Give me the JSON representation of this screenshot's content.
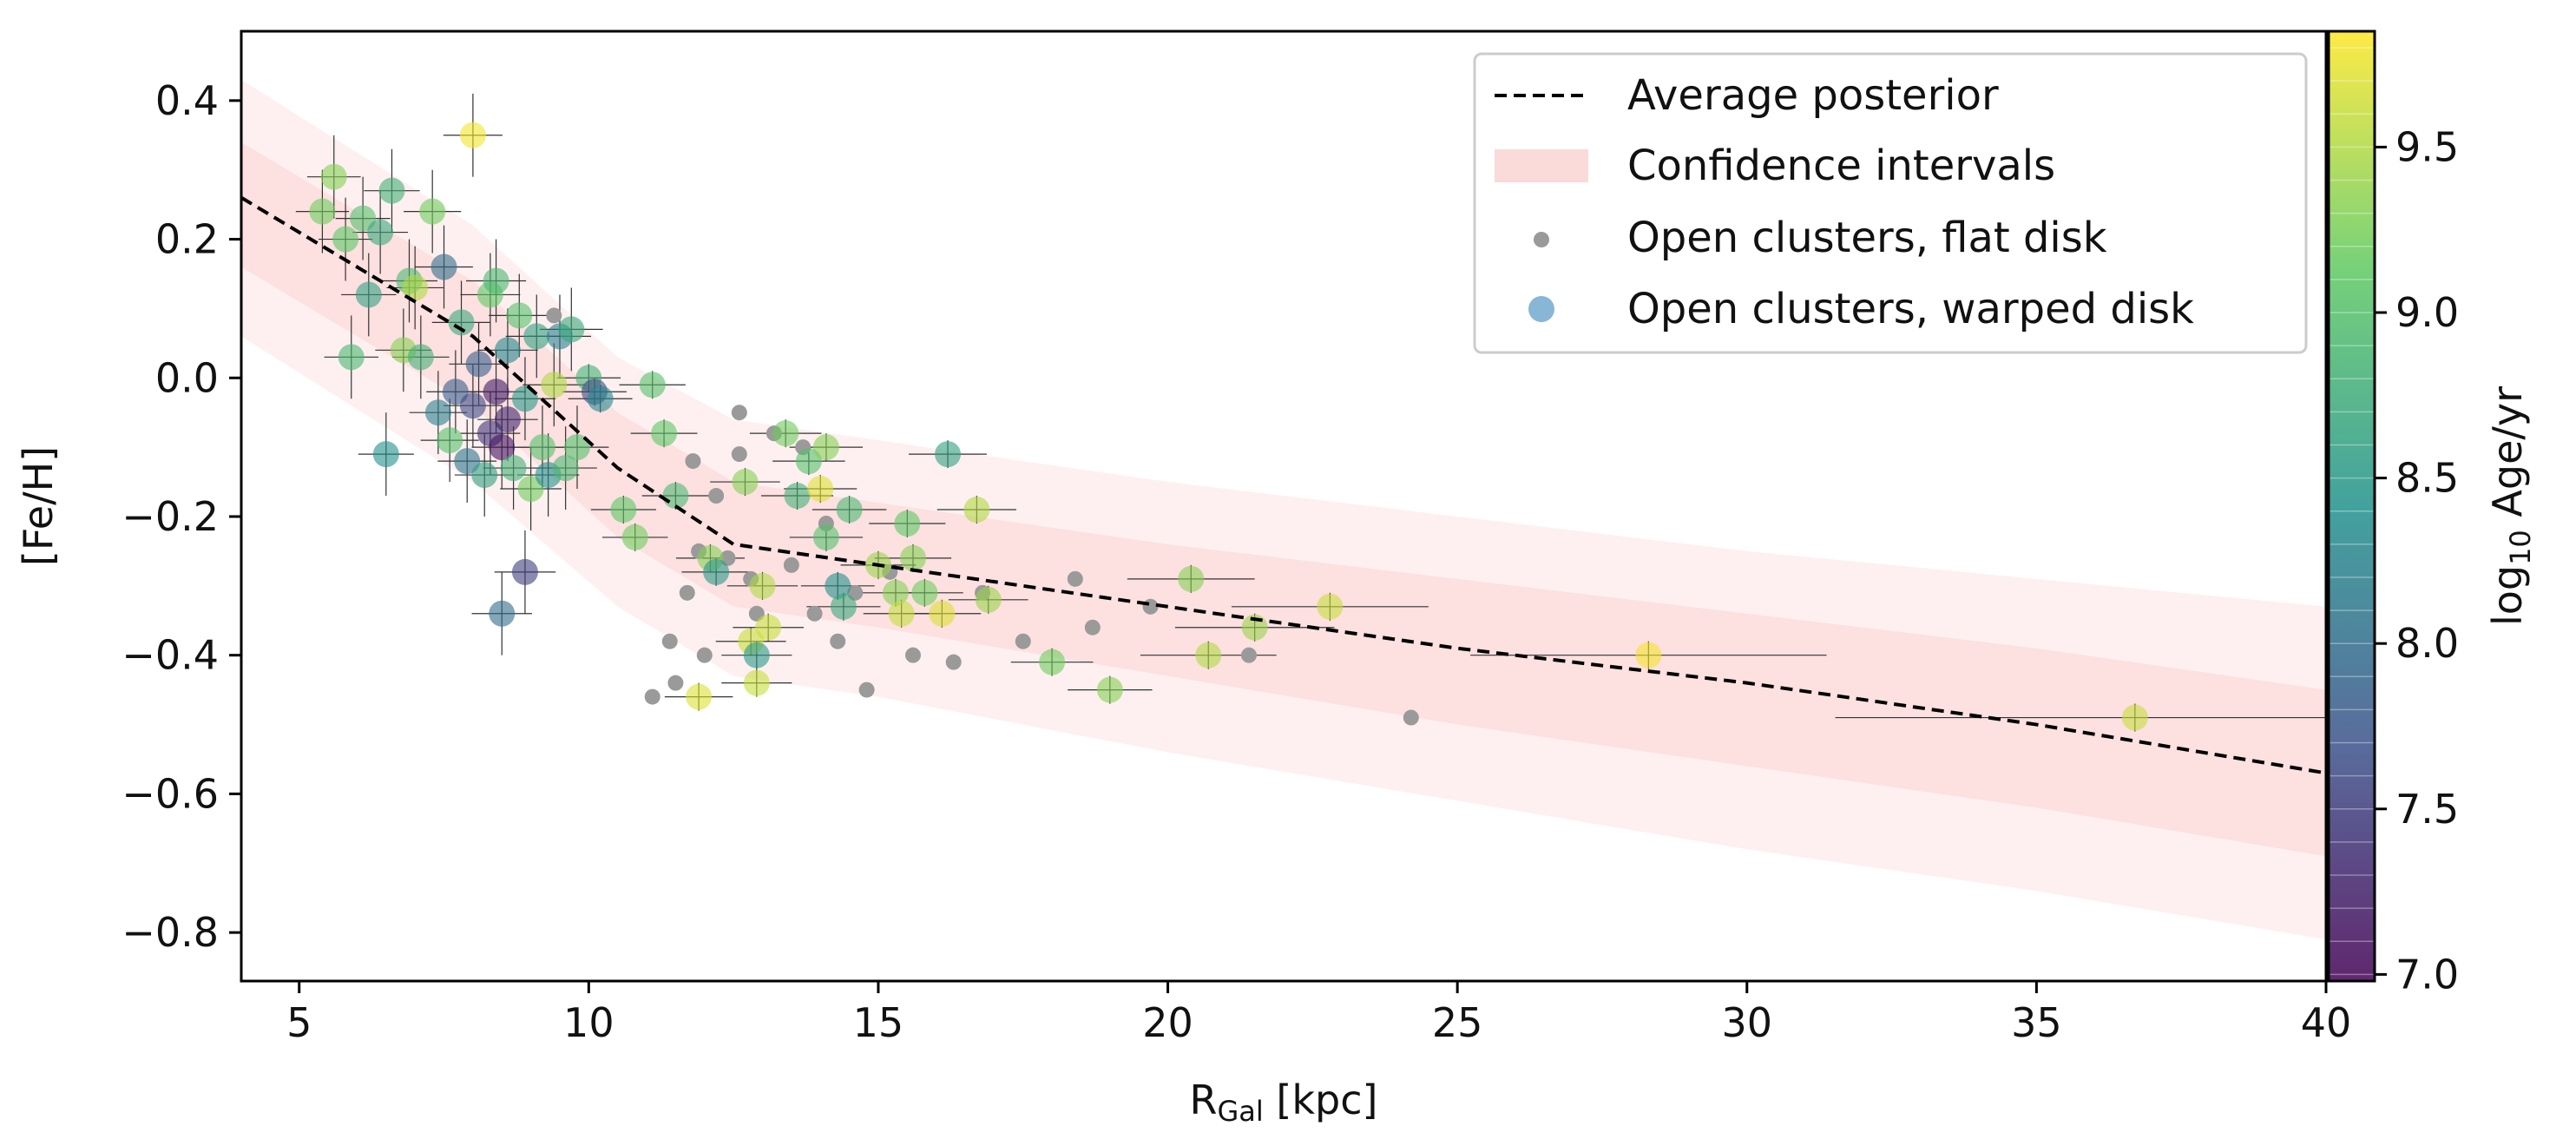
{
  "chart_data": {
    "type": "scatter",
    "xlabel_main": "R",
    "xlabel_sub": "Gal",
    "xlabel_unit": " [kpc]",
    "ylabel": "[Fe/H]",
    "xlim": [
      4,
      40
    ],
    "ylim": [
      -0.87,
      0.5
    ],
    "xticks": [
      5,
      10,
      15,
      20,
      25,
      30,
      35,
      40
    ],
    "xtick_labels": [
      "5",
      "10",
      "15",
      "20",
      "25",
      "30",
      "35",
      "40"
    ],
    "yticks": [
      0.4,
      0.2,
      0.0,
      -0.2,
      -0.4,
      -0.6,
      -0.8
    ],
    "ytick_labels": [
      "0.4",
      "0.2",
      "0.0",
      "−0.2",
      "−0.4",
      "−0.6",
      "−0.8"
    ],
    "legend": {
      "placement": "top-right",
      "entries": [
        {
          "label": "Average posterior",
          "marker": "dashed-line"
        },
        {
          "label": "Confidence intervals",
          "marker": "band"
        },
        {
          "label": "Open clusters, flat disk",
          "marker": "gray-dot"
        },
        {
          "label": "Open clusters, warped disk",
          "marker": "blue-dot"
        }
      ]
    },
    "colorbar": {
      "label_prefix": "log",
      "label_sub": "10",
      "label_suffix": " Age/yr",
      "range": [
        6.98,
        9.85
      ],
      "ticks": [
        7.0,
        7.5,
        8.0,
        8.5,
        9.0,
        9.5
      ],
      "tick_labels": [
        "7.0",
        "7.5",
        "8.0",
        "8.5",
        "9.0",
        "9.5"
      ]
    },
    "series": [
      {
        "name": "Average posterior",
        "x": [
          4,
          8,
          10.5,
          12.5,
          15,
          20,
          25,
          30,
          35,
          40
        ],
        "y": [
          0.26,
          0.06,
          -0.13,
          -0.24,
          -0.27,
          -0.33,
          -0.39,
          -0.44,
          -0.5,
          -0.57
        ]
      },
      {
        "name": "Confidence intervals (inner)",
        "x": [
          4,
          8,
          10.5,
          12.5,
          15,
          20,
          25,
          30,
          35,
          40
        ],
        "lower": [
          0.16,
          -0.04,
          -0.23,
          -0.33,
          -0.36,
          -0.43,
          -0.5,
          -0.56,
          -0.62,
          -0.69
        ],
        "upper": [
          0.34,
          0.14,
          -0.05,
          -0.15,
          -0.18,
          -0.24,
          -0.29,
          -0.34,
          -0.39,
          -0.45
        ]
      },
      {
        "name": "Confidence intervals (outer)",
        "x": [
          4,
          8,
          10.5,
          12.5,
          15,
          20,
          25,
          30,
          35,
          40
        ],
        "lower": [
          0.06,
          -0.15,
          -0.33,
          -0.43,
          -0.46,
          -0.54,
          -0.61,
          -0.68,
          -0.74,
          -0.81
        ],
        "upper": [
          0.43,
          0.22,
          0.03,
          -0.06,
          -0.09,
          -0.15,
          -0.2,
          -0.25,
          -0.29,
          -0.33
        ]
      },
      {
        "name": "Open clusters, flat disk",
        "points": [
          [
            9.4,
            0.09
          ],
          [
            11.1,
            -0.46
          ],
          [
            11.4,
            -0.38
          ],
          [
            11.5,
            -0.44
          ],
          [
            11.7,
            -0.31
          ],
          [
            11.9,
            -0.25
          ],
          [
            12.0,
            -0.4
          ],
          [
            12.2,
            -0.17
          ],
          [
            12.4,
            -0.26
          ],
          [
            12.6,
            -0.11
          ],
          [
            12.8,
            -0.29
          ],
          [
            12.9,
            -0.34
          ],
          [
            13.2,
            -0.08
          ],
          [
            13.5,
            -0.27
          ],
          [
            13.7,
            -0.1
          ],
          [
            13.9,
            -0.34
          ],
          [
            14.1,
            -0.21
          ],
          [
            14.3,
            -0.38
          ],
          [
            14.6,
            -0.31
          ],
          [
            14.8,
            -0.45
          ],
          [
            15.2,
            -0.28
          ],
          [
            15.6,
            -0.4
          ],
          [
            16.3,
            -0.41
          ],
          [
            16.8,
            -0.31
          ],
          [
            17.5,
            -0.38
          ],
          [
            18.4,
            -0.29
          ],
          [
            18.7,
            -0.36
          ],
          [
            19.7,
            -0.33
          ],
          [
            21.4,
            -0.4
          ],
          [
            24.2,
            -0.49
          ],
          [
            12.6,
            -0.05
          ],
          [
            11.8,
            -0.12
          ]
        ]
      },
      {
        "name": "Open clusters, warped disk",
        "points": [
          [
            5.4,
            0.24,
            9.2
          ],
          [
            5.6,
            0.29,
            9.3
          ],
          [
            5.8,
            0.2,
            9.1
          ],
          [
            5.9,
            0.03,
            8.9
          ],
          [
            6.1,
            0.23,
            9.0
          ],
          [
            6.2,
            0.12,
            8.6
          ],
          [
            6.4,
            0.21,
            8.7
          ],
          [
            6.5,
            -0.11,
            8.4
          ],
          [
            6.6,
            0.27,
            8.8
          ],
          [
            6.8,
            0.04,
            9.3
          ],
          [
            6.9,
            0.14,
            8.9
          ],
          [
            7.0,
            0.13,
            9.5
          ],
          [
            7.1,
            0.03,
            8.8
          ],
          [
            7.3,
            0.24,
            9.2
          ],
          [
            7.4,
            -0.05,
            8.2
          ],
          [
            7.5,
            0.16,
            8.0
          ],
          [
            7.6,
            -0.09,
            9.0
          ],
          [
            7.7,
            -0.02,
            7.8
          ],
          [
            7.8,
            0.08,
            8.7
          ],
          [
            7.9,
            -0.12,
            8.1
          ],
          [
            8.0,
            0.35,
            9.8
          ],
          [
            8.0,
            -0.04,
            7.6
          ],
          [
            8.1,
            0.02,
            7.8
          ],
          [
            8.2,
            -0.14,
            8.6
          ],
          [
            8.3,
            -0.08,
            7.4
          ],
          [
            8.3,
            0.12,
            9.1
          ],
          [
            8.4,
            -0.02,
            7.2
          ],
          [
            8.4,
            0.14,
            8.9
          ],
          [
            8.5,
            -0.1,
            7.1
          ],
          [
            8.5,
            -0.34,
            8.0
          ],
          [
            8.6,
            -0.06,
            7.3
          ],
          [
            8.6,
            0.04,
            8.3
          ],
          [
            8.7,
            -0.13,
            8.8
          ],
          [
            8.8,
            0.09,
            9.0
          ],
          [
            8.9,
            -0.28,
            7.5
          ],
          [
            8.9,
            -0.03,
            8.5
          ],
          [
            9.0,
            -0.16,
            9.2
          ],
          [
            9.1,
            0.06,
            8.6
          ],
          [
            9.2,
            -0.1,
            9.0
          ],
          [
            9.3,
            -0.14,
            8.4
          ],
          [
            9.4,
            -0.01,
            9.5
          ],
          [
            9.5,
            0.06,
            8.2
          ],
          [
            9.6,
            -0.13,
            8.9
          ],
          [
            9.7,
            0.07,
            8.7
          ],
          [
            9.8,
            -0.1,
            9.0
          ],
          [
            10.0,
            0.0,
            8.8
          ],
          [
            10.1,
            -0.02,
            7.6
          ],
          [
            10.2,
            -0.03,
            8.3
          ],
          [
            10.6,
            -0.19,
            9.1
          ],
          [
            10.8,
            -0.23,
            9.2
          ],
          [
            11.1,
            -0.01,
            9.0
          ],
          [
            11.3,
            -0.08,
            9.1
          ],
          [
            11.5,
            -0.17,
            8.9
          ],
          [
            11.9,
            -0.46,
            9.7
          ],
          [
            12.1,
            -0.26,
            9.3
          ],
          [
            12.2,
            -0.28,
            8.5
          ],
          [
            12.7,
            -0.15,
            9.3
          ],
          [
            12.8,
            -0.38,
            9.6
          ],
          [
            12.9,
            -0.44,
            9.6
          ],
          [
            12.9,
            -0.4,
            8.5
          ],
          [
            13.0,
            -0.3,
            9.5
          ],
          [
            13.1,
            -0.36,
            9.6
          ],
          [
            13.4,
            -0.08,
            9.2
          ],
          [
            13.6,
            -0.17,
            8.8
          ],
          [
            13.8,
            -0.12,
            9.0
          ],
          [
            14.0,
            -0.16,
            9.7
          ],
          [
            14.1,
            -0.23,
            9.0
          ],
          [
            14.1,
            -0.1,
            9.3
          ],
          [
            14.3,
            -0.3,
            8.4
          ],
          [
            14.4,
            -0.33,
            8.7
          ],
          [
            14.5,
            -0.19,
            8.9
          ],
          [
            15.0,
            -0.27,
            9.4
          ],
          [
            15.3,
            -0.31,
            9.3
          ],
          [
            15.4,
            -0.34,
            9.6
          ],
          [
            15.5,
            -0.21,
            9.1
          ],
          [
            15.6,
            -0.26,
            9.3
          ],
          [
            15.8,
            -0.31,
            9.2
          ],
          [
            16.1,
            -0.34,
            9.7
          ],
          [
            16.2,
            -0.11,
            8.6
          ],
          [
            16.7,
            -0.19,
            9.5
          ],
          [
            16.9,
            -0.32,
            9.4
          ],
          [
            18.0,
            -0.41,
            9.2
          ],
          [
            19.0,
            -0.45,
            9.3
          ],
          [
            20.4,
            -0.29,
            9.3
          ],
          [
            20.7,
            -0.4,
            9.5
          ],
          [
            21.5,
            -0.36,
            9.4
          ],
          [
            22.8,
            -0.33,
            9.6
          ],
          [
            28.3,
            -0.4,
            9.8
          ],
          [
            36.7,
            -0.49,
            9.6
          ]
        ]
      }
    ]
  }
}
